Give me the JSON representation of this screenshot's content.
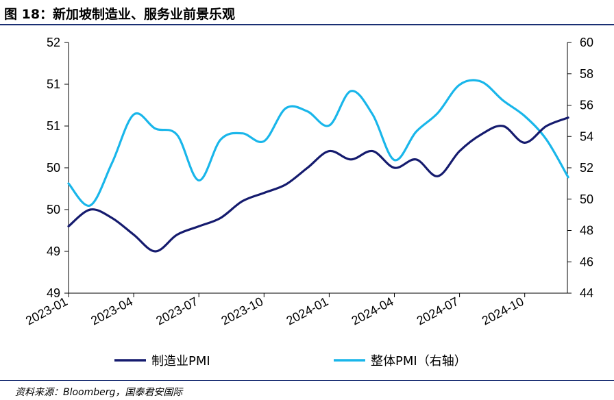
{
  "title": "图 18：新加坡制造业、服务业前景乐观",
  "source": "资料来源：Bloomberg，国泰君安国际",
  "chart_data": {
    "type": "line",
    "title": "图 18：新加坡制造业、服务业前景乐观",
    "x": [
      "2023-01",
      "2023-02",
      "2023-03",
      "2023-04",
      "2023-05",
      "2023-06",
      "2023-07",
      "2023-08",
      "2023-09",
      "2023-10",
      "2023-11",
      "2023-12",
      "2024-01",
      "2024-02",
      "2024-03",
      "2024-04",
      "2024-05",
      "2024-06",
      "2024-07",
      "2024-08",
      "2024-09",
      "2024-10",
      "2024-11",
      "2024-12"
    ],
    "x_tick_labels": [
      "2023-01",
      "2023-04",
      "2023-07",
      "2023-10",
      "2024-01",
      "2024-04",
      "2024-07",
      "2024-10"
    ],
    "left_axis": {
      "tick_labels": [
        "52",
        "51",
        "51",
        "50",
        "50",
        "49",
        "49"
      ],
      "ylim": [
        49.0,
        52.0
      ]
    },
    "right_axis": {
      "tick_labels": [
        "60",
        "58",
        "56",
        "54",
        "52",
        "50",
        "48",
        "46",
        "44"
      ],
      "ylim": [
        44,
        60
      ]
    },
    "series": [
      {
        "name": "制造业PMI",
        "axis": "left",
        "color": "#151b6e",
        "values": [
          49.8,
          50.0,
          49.9,
          49.7,
          49.5,
          49.7,
          49.8,
          49.9,
          50.1,
          50.2,
          50.3,
          50.5,
          50.7,
          50.6,
          50.7,
          50.5,
          50.6,
          50.4,
          50.7,
          50.9,
          51.0,
          50.8,
          51.0,
          51.1
        ]
      },
      {
        "name": "整体PMI（右轴）",
        "axis": "right",
        "color": "#19b6ea",
        "values": [
          51.0,
          49.6,
          52.3,
          55.4,
          54.5,
          54.1,
          51.2,
          53.8,
          54.2,
          53.7,
          55.8,
          55.6,
          54.7,
          56.9,
          55.4,
          52.5,
          54.3,
          55.5,
          57.3,
          57.5,
          56.3,
          55.3,
          53.8,
          51.4
        ]
      }
    ],
    "legend_position": "bottom",
    "grid": false
  },
  "colors": {
    "manufacturing": "#151b6e",
    "composite": "#19b6ea",
    "rule": "#1a2f73"
  }
}
